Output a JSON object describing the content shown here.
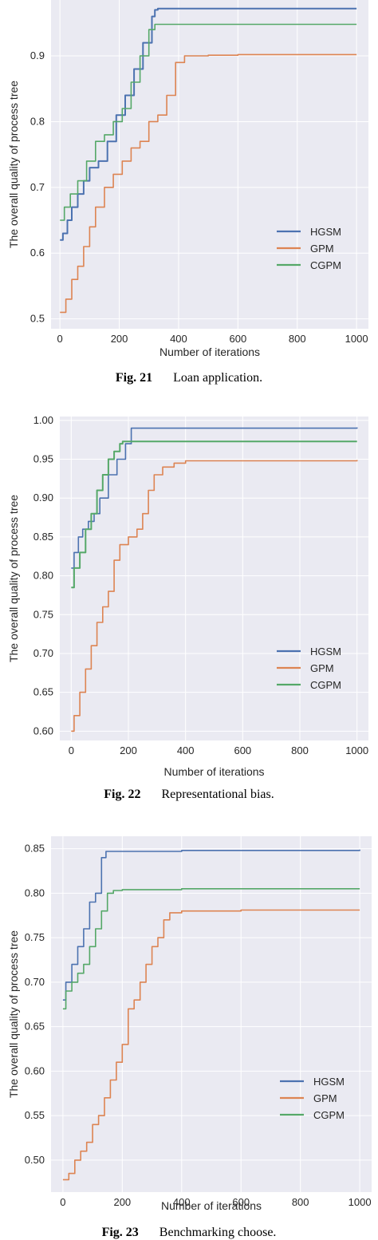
{
  "figures": [
    {
      "caption_num": "Fig. 21",
      "caption_text": "Loan application.",
      "chart_data": {
        "type": "line",
        "xlabel": "Number of iterations",
        "ylabel": "The overall quality of process tree",
        "xlim": [
          -30,
          1040
        ],
        "ylim": [
          0.485,
          0.985
        ],
        "xticks": [
          0,
          200,
          400,
          600,
          800,
          1000
        ],
        "xtick_labels": [
          "0",
          "200",
          "400",
          "600",
          "800",
          "1000"
        ],
        "yticks": [
          0.5,
          0.6,
          0.7,
          0.8,
          0.9
        ],
        "ytick_labels": [
          "0.5",
          "0.6",
          "0.7",
          "0.8",
          "0.9"
        ],
        "grid": true,
        "legend_position": "lower-right",
        "series": [
          {
            "name": "HGSM",
            "color": "#4c72b0",
            "x": [
              0,
              10,
              25,
              40,
              60,
              80,
              100,
              130,
              160,
              190,
              220,
              250,
              280,
              310,
              320,
              330,
              1000
            ],
            "y": [
              0.62,
              0.63,
              0.65,
              0.67,
              0.69,
              0.71,
              0.73,
              0.74,
              0.77,
              0.81,
              0.84,
              0.88,
              0.92,
              0.96,
              0.97,
              0.972,
              0.972
            ]
          },
          {
            "name": "GPM",
            "color": "#dd8452",
            "x": [
              0,
              20,
              40,
              60,
              80,
              100,
              120,
              150,
              180,
              210,
              240,
              270,
              300,
              330,
              360,
              390,
              420,
              500,
              600,
              1000
            ],
            "y": [
              0.51,
              0.53,
              0.56,
              0.58,
              0.61,
              0.64,
              0.67,
              0.7,
              0.72,
              0.74,
              0.76,
              0.77,
              0.8,
              0.81,
              0.84,
              0.89,
              0.9,
              0.901,
              0.902,
              0.902
            ]
          },
          {
            "name": "CGPM",
            "color": "#55a868",
            "x": [
              0,
              15,
              35,
              60,
              90,
              120,
              150,
              180,
              210,
              240,
              270,
              300,
              320,
              1000
            ],
            "y": [
              0.65,
              0.67,
              0.69,
              0.71,
              0.74,
              0.77,
              0.78,
              0.8,
              0.82,
              0.86,
              0.9,
              0.94,
              0.948,
              0.948
            ]
          }
        ]
      }
    },
    {
      "caption_num": "Fig. 22",
      "caption_text": "Representational bias.",
      "chart_data": {
        "type": "line",
        "xlabel": "Number of iterations",
        "ylabel": "The overall quality of process tree",
        "xlim": [
          -40,
          1040
        ],
        "ylim": [
          0.588,
          1.005
        ],
        "xticks": [
          0,
          200,
          400,
          600,
          800,
          1000
        ],
        "xtick_labels": [
          "0",
          "200",
          "400",
          "600",
          "800",
          "1000"
        ],
        "yticks": [
          0.6,
          0.65,
          0.7,
          0.75,
          0.8,
          0.85,
          0.9,
          0.95,
          1.0
        ],
        "ytick_labels": [
          "0.60",
          "0.65",
          "0.70",
          "0.75",
          "0.80",
          "0.85",
          "0.90",
          "0.95",
          "1.00"
        ],
        "grid": true,
        "legend_position": "lower-right",
        "series": [
          {
            "name": "HGSM",
            "color": "#4c72b0",
            "x": [
              0,
              10,
              25,
              40,
              60,
              80,
              100,
              130,
              160,
              190,
              210,
              1000
            ],
            "y": [
              0.81,
              0.83,
              0.85,
              0.86,
              0.87,
              0.88,
              0.9,
              0.93,
              0.95,
              0.97,
              0.99,
              0.991
            ]
          },
          {
            "name": "GPM",
            "color": "#dd8452",
            "x": [
              0,
              10,
              30,
              50,
              70,
              90,
              110,
              130,
              150,
              170,
              200,
              230,
              250,
              270,
              290,
              320,
              360,
              400,
              1000
            ],
            "y": [
              0.6,
              0.62,
              0.65,
              0.68,
              0.71,
              0.74,
              0.76,
              0.78,
              0.82,
              0.84,
              0.85,
              0.86,
              0.88,
              0.91,
              0.93,
              0.94,
              0.945,
              0.948,
              0.949
            ]
          },
          {
            "name": "CGPM",
            "color": "#55a868",
            "x": [
              0,
              10,
              30,
              50,
              70,
              90,
              110,
              130,
              150,
              170,
              180,
              1000
            ],
            "y": [
              0.785,
              0.81,
              0.83,
              0.86,
              0.88,
              0.91,
              0.93,
              0.95,
              0.96,
              0.97,
              0.973,
              0.973
            ]
          }
        ]
      }
    },
    {
      "caption_num": "Fig. 23",
      "caption_text": "Benchmarking choose.",
      "chart_data": {
        "type": "line",
        "xlabel": "Number of iterations",
        "ylabel": "The overall quality of process tree",
        "xlim": [
          -40,
          1040
        ],
        "ylim": [
          0.464,
          0.864
        ],
        "xticks": [
          0,
          200,
          400,
          600,
          800,
          1000
        ],
        "xtick_labels": [
          "0",
          "200",
          "400",
          "600",
          "800",
          "1000"
        ],
        "yticks": [
          0.5,
          0.55,
          0.6,
          0.65,
          0.7,
          0.75,
          0.8,
          0.85
        ],
        "ytick_labels": [
          "0.50",
          "0.55",
          "0.60",
          "0.65",
          "0.70",
          "0.75",
          "0.80",
          "0.85"
        ],
        "grid": true,
        "legend_position": "lower-right",
        "series": [
          {
            "name": "HGSM",
            "color": "#4c72b0",
            "x": [
              0,
              10,
              30,
              50,
              70,
              90,
              110,
              130,
              145,
              400,
              1000
            ],
            "y": [
              0.68,
              0.7,
              0.72,
              0.74,
              0.76,
              0.79,
              0.8,
              0.84,
              0.847,
              0.848,
              0.849
            ]
          },
          {
            "name": "GPM",
            "color": "#dd8452",
            "x": [
              0,
              20,
              40,
              60,
              80,
              100,
              120,
              140,
              160,
              180,
              200,
              220,
              240,
              260,
              280,
              300,
              320,
              340,
              360,
              400,
              600,
              1000
            ],
            "y": [
              0.478,
              0.485,
              0.5,
              0.51,
              0.52,
              0.54,
              0.55,
              0.57,
              0.59,
              0.61,
              0.63,
              0.67,
              0.68,
              0.7,
              0.72,
              0.74,
              0.75,
              0.77,
              0.778,
              0.78,
              0.781,
              0.781
            ]
          },
          {
            "name": "CGPM",
            "color": "#55a868",
            "x": [
              0,
              10,
              30,
              50,
              70,
              90,
              110,
              130,
              150,
              170,
              200,
              400,
              1000
            ],
            "y": [
              0.67,
              0.69,
              0.7,
              0.71,
              0.72,
              0.74,
              0.76,
              0.78,
              0.8,
              0.803,
              0.804,
              0.805,
              0.805
            ]
          }
        ]
      }
    }
  ]
}
